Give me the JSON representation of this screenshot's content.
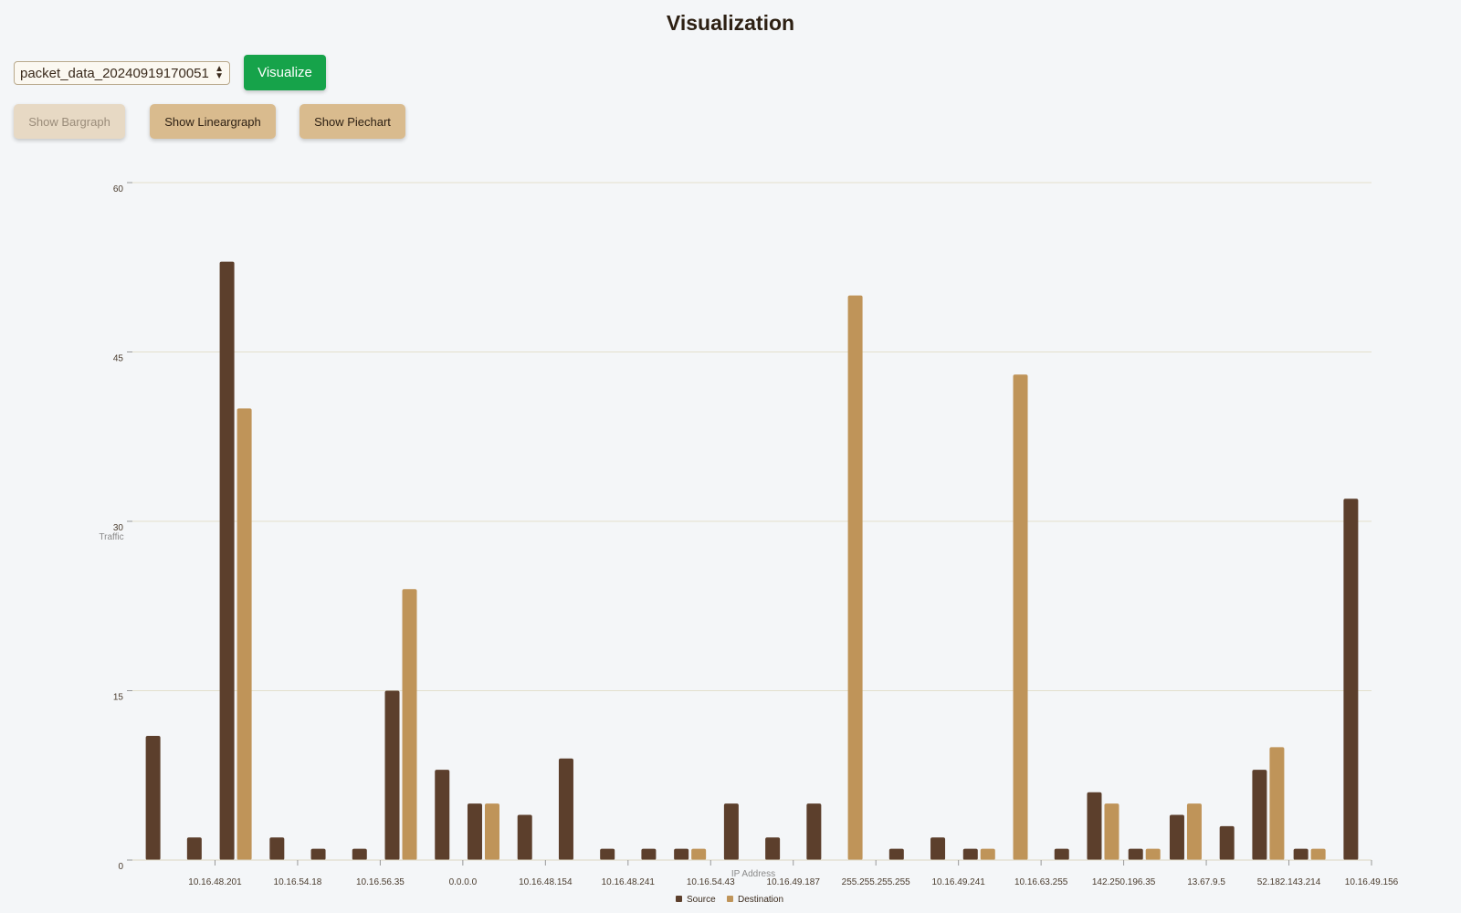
{
  "header": {
    "title": "Visualization"
  },
  "controls": {
    "file_select_value": "packet_data_20240919170051",
    "visualize_label": "Visualize",
    "tabs": [
      {
        "label": "Show Bargraph",
        "disabled": true
      },
      {
        "label": "Show Lineargraph",
        "disabled": false
      },
      {
        "label": "Show Piechart",
        "disabled": false
      }
    ]
  },
  "colors": {
    "source": "#5c3f2c",
    "destination": "#bf9459",
    "visualize": "#16a34a",
    "tab": "#d9bb8e",
    "grid": "#e3e0cd"
  },
  "chart_data": {
    "type": "bar",
    "xlabel": "IP Address",
    "ylabel": "Traffic",
    "ylim": [
      0,
      60
    ],
    "yticks": [
      0,
      15,
      30,
      45,
      60
    ],
    "grid": true,
    "legend_position": "bottom-center",
    "x_tick_labels": [
      "10.16.48.201",
      "10.16.54.18",
      "10.16.56.35",
      "0.0.0.0",
      "10.16.48.154",
      "10.16.48.241",
      "10.16.54.43",
      "10.16.49.187",
      "255.255.255.255",
      "10.16.49.241",
      "10.16.63.255",
      "142.250.196.35",
      "13.67.9.5",
      "52.182.143.214",
      "10.16.49.156"
    ],
    "series": [
      {
        "name": "Source",
        "color": "#5c3f2c",
        "values": [
          11,
          2,
          53,
          2,
          1,
          1,
          15,
          8,
          5,
          4,
          9,
          1,
          1,
          1,
          5,
          2,
          5,
          0,
          1,
          2,
          1,
          0,
          1,
          6,
          1,
          4,
          3,
          8,
          1,
          32
        ]
      },
      {
        "name": "Destination",
        "color": "#bf9459",
        "values": [
          0,
          0,
          40,
          0,
          0,
          0,
          24,
          0,
          5,
          0,
          0,
          0,
          0,
          1,
          0,
          0,
          0,
          50,
          0,
          0,
          1,
          43,
          0,
          5,
          1,
          5,
          0,
          10,
          1,
          0
        ]
      }
    ]
  }
}
